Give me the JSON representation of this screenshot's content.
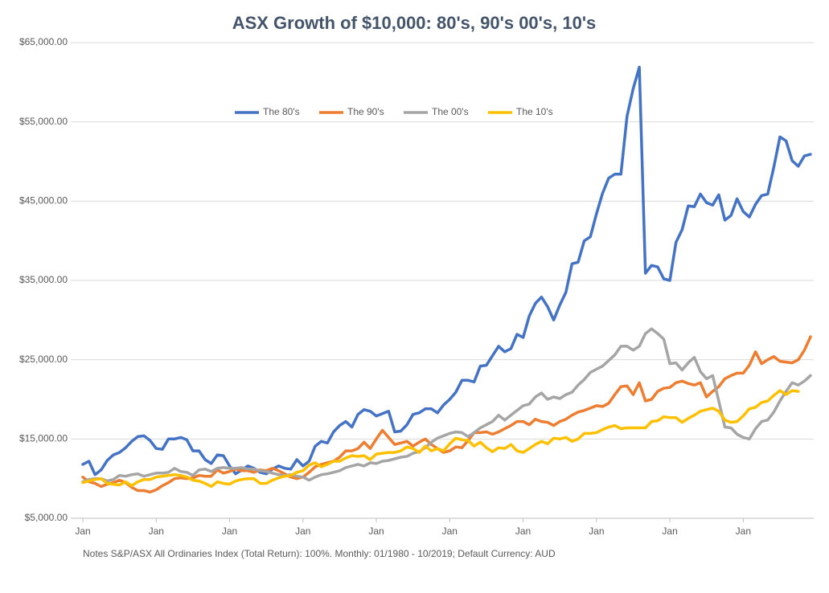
{
  "chart_data": {
    "type": "line",
    "title": "ASX Growth of $10,000: 80's, 90's 00's, 10's",
    "notes": "Notes S&P/ASX All Ordinaries Index (Total Return): 100%. Monthly: 01/1980 - 10/2019; Default Currency: AUD",
    "legend": "top",
    "grid": true,
    "ylim": [
      5000,
      65000
    ],
    "yticks": [
      {
        "value": 5000,
        "label": "$5,000.00"
      },
      {
        "value": 15000,
        "label": "$15,000.00"
      },
      {
        "value": 25000,
        "label": "$25,000.00"
      },
      {
        "value": 35000,
        "label": "$35,000.00"
      },
      {
        "value": 45000,
        "label": "$45,000.00"
      },
      {
        "value": 55000,
        "label": "$55,000.00"
      },
      {
        "value": 65000,
        "label": "$65,000.00"
      }
    ],
    "categories": [
      "Jan",
      null,
      null,
      null,
      null,
      null,
      null,
      null,
      null,
      null,
      null,
      null,
      "Jan",
      null,
      null,
      null,
      null,
      null,
      null,
      null,
      null,
      null,
      null,
      null,
      "Jan",
      null,
      null,
      null,
      null,
      null,
      null,
      null,
      null,
      null,
      null,
      null,
      "Jan",
      null,
      null,
      null,
      null,
      null,
      null,
      null,
      null,
      null,
      null,
      null,
      "Jan",
      null,
      null,
      null,
      null,
      null,
      null,
      null,
      null,
      null,
      null,
      null,
      "Jan",
      null,
      null,
      null,
      null,
      null,
      null,
      null,
      null,
      null,
      null,
      null,
      "Jan",
      null,
      null,
      null,
      null,
      null,
      null,
      null,
      null,
      null,
      null,
      null,
      "Jan",
      null,
      null,
      null,
      null,
      null,
      null,
      null,
      null,
      null,
      null,
      null,
      "Jan",
      null,
      null,
      null,
      null,
      null,
      null,
      null,
      null,
      null,
      null,
      null,
      "Jan",
      null,
      null,
      null,
      null,
      null,
      null,
      null,
      null,
      null,
      null,
      null
    ],
    "series": [
      {
        "name": "The 80's",
        "color": "#4472c4",
        "values": [
          11800,
          12200,
          10500,
          11100,
          12300,
          13000,
          13300,
          13900,
          14700,
          15300,
          15400,
          14800,
          13800,
          13700,
          15000,
          15000,
          15200,
          14900,
          13500,
          13500,
          12400,
          11900,
          13000,
          12900,
          11600,
          10600,
          11100,
          11600,
          11300,
          10800,
          10600,
          11200,
          11600,
          11300,
          11200,
          12400,
          11600,
          12200,
          14100,
          14700,
          14500,
          15900,
          16700,
          17200,
          16500,
          18100,
          18700,
          18500,
          17900,
          18200,
          18500,
          15900,
          16000,
          16800,
          18100,
          18300,
          18800,
          18800,
          18300,
          19300,
          20000,
          20900,
          22400,
          22400,
          22200,
          24200,
          24300,
          25500,
          26700,
          26000,
          26400,
          28200,
          27800,
          30500,
          32100,
          32900,
          31700,
          30000,
          31900,
          33500,
          37100,
          37300,
          40000,
          40500,
          43400,
          46000,
          47900,
          48400,
          48400,
          55700,
          59200,
          61900,
          35900,
          36900,
          36700,
          35200,
          35000,
          39800,
          41400,
          44400,
          44300,
          45900,
          44800,
          44500,
          45800,
          42600,
          43200,
          45300,
          43700,
          43000,
          44600,
          45700,
          45900,
          49300,
          53100,
          52600,
          50100,
          49400,
          50700,
          50900
        ]
      },
      {
        "name": "The 90's",
        "color": "#ed7d31",
        "values": [
          10200,
          9600,
          9400,
          9000,
          9300,
          9500,
          9800,
          9500,
          8900,
          8500,
          8500,
          8300,
          8600,
          9100,
          9500,
          10000,
          10100,
          10000,
          10100,
          10400,
          10300,
          10300,
          11100,
          10700,
          10900,
          11200,
          11000,
          11000,
          10800,
          11100,
          11000,
          11300,
          11000,
          10600,
          10200,
          10000,
          10200,
          10800,
          11500,
          11800,
          12000,
          12200,
          12700,
          13500,
          13500,
          13800,
          14600,
          13800,
          15000,
          16100,
          15200,
          14300,
          14500,
          14700,
          14100,
          14600,
          15000,
          14300,
          13800,
          13300,
          13500,
          14000,
          13900,
          14800,
          15800,
          15800,
          15900,
          15600,
          15900,
          16300,
          16700,
          17200,
          17200,
          16800,
          17500,
          17200,
          17100,
          16700,
          17200,
          17500,
          18000,
          18400,
          18600,
          18900,
          19200,
          19100,
          19500,
          20600,
          21600,
          21700,
          20600,
          22100,
          19800,
          20000,
          21000,
          21400,
          21500,
          22100,
          22300,
          22000,
          21800,
          22100,
          20300,
          21000,
          21600,
          22600,
          23000,
          23300,
          23300,
          24300,
          26000,
          24500,
          25000,
          25400,
          24800,
          24700,
          24600,
          25000,
          26200,
          27900
        ]
      },
      {
        "name": "The 00's",
        "color": "#a5a5a5",
        "values": [
          9600,
          9900,
          10000,
          10000,
          9700,
          9900,
          10400,
          10300,
          10500,
          10600,
          10300,
          10500,
          10700,
          10700,
          10800,
          11300,
          10900,
          10800,
          10400,
          11100,
          11200,
          10900,
          11300,
          11400,
          11300,
          11300,
          11400,
          11200,
          11200,
          11000,
          10900,
          10700,
          10500,
          10400,
          10500,
          10300,
          10200,
          9800,
          10200,
          10500,
          10600,
          10800,
          11000,
          11400,
          11600,
          11800,
          11600,
          12000,
          11900,
          12200,
          12300,
          12500,
          12700,
          12800,
          13200,
          13400,
          13900,
          14600,
          15100,
          15400,
          15700,
          15900,
          15800,
          15300,
          15800,
          16400,
          16800,
          17200,
          18000,
          17400,
          18000,
          18600,
          19200,
          19400,
          20300,
          20800,
          20000,
          20300,
          20100,
          20600,
          20900,
          21800,
          22500,
          23400,
          23800,
          24200,
          24900,
          25600,
          26700,
          26700,
          26200,
          26700,
          28300,
          28900,
          28300,
          27600,
          24500,
          24600,
          23700,
          24600,
          25300,
          23500,
          22600,
          23000,
          19800,
          16500,
          16400,
          15600,
          15200,
          15000,
          16300,
          17200,
          17400,
          18400,
          19800,
          21000,
          22100,
          21800,
          22300,
          23000
        ]
      },
      {
        "name": "The 10's",
        "color": "#ffc000",
        "values": [
          9500,
          9700,
          9900,
          10000,
          9400,
          9300,
          9200,
          9600,
          9100,
          9600,
          9900,
          9900,
          10200,
          10300,
          10400,
          10500,
          10400,
          10200,
          9800,
          9700,
          9400,
          9000,
          9600,
          9400,
          9300,
          9700,
          9900,
          10000,
          10000,
          9400,
          9400,
          9800,
          10100,
          10300,
          10400,
          10800,
          11000,
          11700,
          12000,
          11500,
          11800,
          12200,
          12200,
          12600,
          12900,
          12800,
          12900,
          12400,
          13100,
          13200,
          13300,
          13300,
          13500,
          14000,
          13800,
          13300,
          14100,
          13500,
          13800,
          13500,
          14400,
          15100,
          14900,
          14800,
          14100,
          14600,
          13900,
          13400,
          13900,
          13800,
          14300,
          13500,
          13300,
          13800,
          14300,
          14700,
          14400,
          15100,
          15000,
          15200,
          14700,
          15000,
          15700,
          15700,
          15800,
          16200,
          16500,
          16700,
          16300,
          16400,
          16400,
          16400,
          16400,
          17200,
          17300,
          17800,
          17700,
          17700,
          17100,
          17600,
          18000,
          18500,
          18700,
          18900,
          18500,
          17400,
          17100,
          17200,
          17900,
          18800,
          19000,
          19600,
          19800,
          20500,
          21100,
          20600,
          21100,
          21000,
          null,
          null
        ]
      }
    ]
  }
}
